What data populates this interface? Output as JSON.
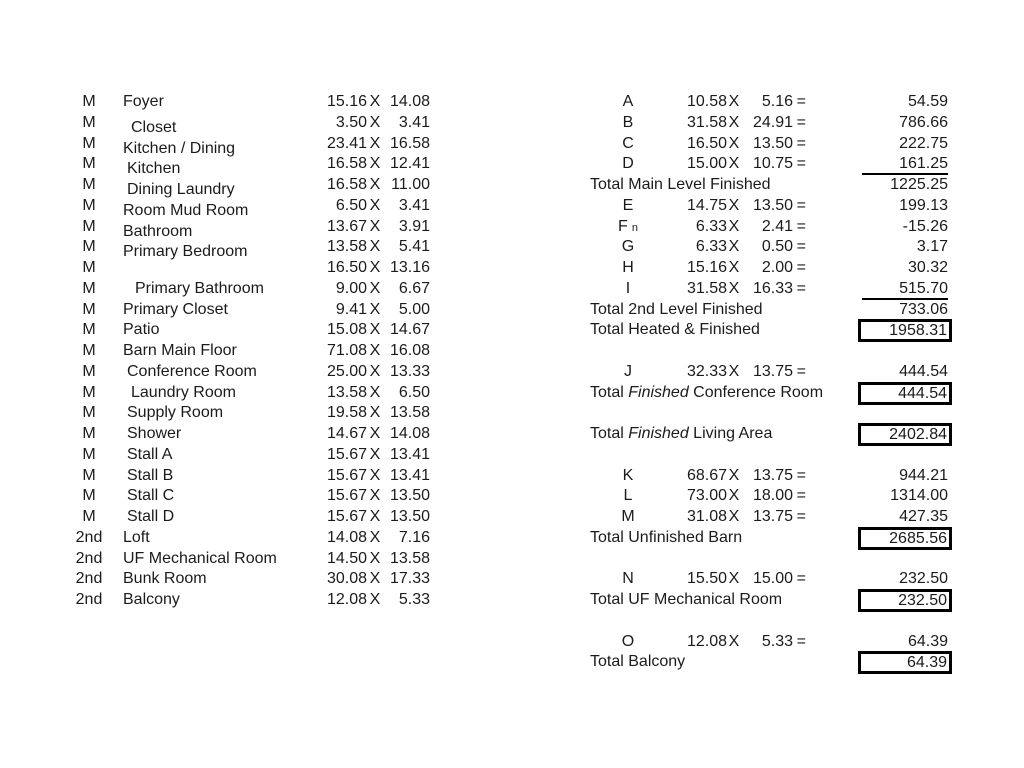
{
  "page": {
    "background": "#ffffff",
    "text_color": "#1b1b1b",
    "line_color": "#000000"
  },
  "symbols": {
    "multiply": "X",
    "equals": "="
  },
  "left_table": {
    "rows": [
      {
        "level": "M",
        "name": "Foyer",
        "w": "15.16",
        "h": "14.08"
      },
      {
        "level": "M",
        "name": "Closet",
        "w": "3.50",
        "h": "3.41",
        "indent": 2,
        "name_shift": true
      },
      {
        "level": "M",
        "name": "Kitchen / Dining",
        "w": "23.41",
        "h": "16.58",
        "name_shift": true
      },
      {
        "level": "M",
        "name": "Kitchen",
        "w": "16.58",
        "h": "12.41",
        "indent": 1,
        "name_shift": true
      },
      {
        "level": "M",
        "name": "Dining Laundry",
        "w": "16.58",
        "h": "11.00",
        "indent": 1,
        "name_shift": true
      },
      {
        "level": "M",
        "name": "Room Mud Room",
        "w": "6.50",
        "h": "3.41",
        "name_shift": true
      },
      {
        "level": "M",
        "name": "Bathroom",
        "w": "13.67",
        "h": "3.91",
        "name_shift": true
      },
      {
        "level": "M",
        "name": "Primary Bedroom",
        "w": "13.58",
        "h": "5.41",
        "name_shift": true
      },
      {
        "level": "M",
        "name": "",
        "w": "16.50",
        "h": "13.16"
      },
      {
        "level": "M",
        "name": "Primary Bathroom",
        "w": "9.00",
        "h": "6.67",
        "indent": 3
      },
      {
        "level": "M",
        "name": "Primary Closet",
        "w": "9.41",
        "h": "5.00"
      },
      {
        "level": "M",
        "name": "Patio",
        "w": "15.08",
        "h": "14.67"
      },
      {
        "level": "M",
        "name": "Barn Main Floor",
        "w": "71.08",
        "h": "16.08"
      },
      {
        "level": "M",
        "name": "Conference Room",
        "w": "25.00",
        "h": "13.33",
        "indent": 1
      },
      {
        "level": "M",
        "name": "Laundry Room",
        "w": "13.58",
        "h": "6.50",
        "indent": 2
      },
      {
        "level": "M",
        "name": "Supply Room",
        "w": "19.58",
        "h": "13.58",
        "indent": 1
      },
      {
        "level": "M",
        "name": "Shower",
        "w": "14.67",
        "h": "14.08",
        "indent": 1
      },
      {
        "level": "M",
        "name": "Stall A",
        "w": "15.67",
        "h": "13.41",
        "indent": 1
      },
      {
        "level": "M",
        "name": "Stall B",
        "w": "15.67",
        "h": "13.41",
        "indent": 1
      },
      {
        "level": "M",
        "name": "Stall C",
        "w": "15.67",
        "h": "13.50",
        "indent": 1
      },
      {
        "level": "M",
        "name": "Stall D",
        "w": "15.67",
        "h": "13.50",
        "indent": 1
      },
      {
        "level": "2nd",
        "name": "Loft",
        "w": "14.08",
        "h": "7.16"
      },
      {
        "level": "2nd",
        "name": "UF Mechanical Room",
        "w": "14.50",
        "h": "13.58"
      },
      {
        "level": "2nd",
        "name": "Bunk Room",
        "w": "30.08",
        "h": "17.33"
      },
      {
        "level": "2nd",
        "name": "Balcony",
        "w": "12.08",
        "h": "5.33"
      }
    ]
  },
  "right_table": {
    "rows": [
      {
        "type": "calc",
        "label": "A",
        "w": "10.58",
        "h": "5.16",
        "value": "54.59"
      },
      {
        "type": "calc",
        "label": "B",
        "w": "31.58",
        "h": "24.91",
        "value": "786.66"
      },
      {
        "type": "calc",
        "label": "C",
        "w": "16.50",
        "h": "13.50",
        "value": "222.75"
      },
      {
        "type": "calc",
        "label": "D",
        "w": "15.00",
        "h": "10.75",
        "value": "161.25",
        "rule_below": true
      },
      {
        "type": "total",
        "pre": "Total Main Level Finished",
        "value": "1225.25"
      },
      {
        "type": "calc",
        "label": "E",
        "w": "14.75",
        "h": "13.50",
        "value": "199.13"
      },
      {
        "type": "calc",
        "label": "F",
        "suffix": "n",
        "w": "6.33",
        "h": "2.41",
        "value": "-15.26"
      },
      {
        "type": "calc",
        "label": "G",
        "w": "6.33",
        "h": "0.50",
        "value": "3.17"
      },
      {
        "type": "calc",
        "label": "H",
        "w": "15.16",
        "h": "2.00",
        "value": "30.32"
      },
      {
        "type": "calc",
        "label": "I",
        "w": "31.58",
        "h": "16.33",
        "value": "515.70",
        "rule_below": true
      },
      {
        "type": "total",
        "pre": "Total 2nd Level Finished",
        "value": "733.06"
      },
      {
        "type": "total",
        "pre": "Total Heated & Finished",
        "value": "1958.31",
        "boxed": true
      },
      {
        "type": "spacer"
      },
      {
        "type": "calc",
        "label": "J",
        "w": "32.33",
        "h": "13.75",
        "value": "444.54"
      },
      {
        "type": "total",
        "pre": "Total ",
        "italic": "Finished",
        "post": " Conference Room",
        "value": "444.54",
        "boxed": true
      },
      {
        "type": "spacer"
      },
      {
        "type": "total",
        "pre": "Total ",
        "italic": "Finished",
        "post": " Living Area",
        "value": "2402.84",
        "boxed": true
      },
      {
        "type": "spacer"
      },
      {
        "type": "calc",
        "label": "K",
        "w": "68.67",
        "h": "13.75",
        "value": "944.21"
      },
      {
        "type": "calc",
        "label": "L",
        "w": "73.00",
        "h": "18.00",
        "value": "1314.00"
      },
      {
        "type": "calc",
        "label": "M",
        "w": "31.08",
        "h": "13.75",
        "value": "427.35"
      },
      {
        "type": "total",
        "pre": "Total Unfinished Barn",
        "value": "2685.56",
        "boxed": true
      },
      {
        "type": "spacer"
      },
      {
        "type": "calc",
        "label": "N",
        "w": "15.50",
        "h": "15.00",
        "value": "232.50"
      },
      {
        "type": "total",
        "pre": "Total UF Mechanical Room",
        "value": "232.50",
        "boxed": true
      },
      {
        "type": "spacer"
      },
      {
        "type": "calc",
        "label": "O",
        "w": "12.08",
        "h": "5.33",
        "value": "64.39"
      },
      {
        "type": "total",
        "pre": "Total Balcony",
        "value": "64.39",
        "boxed": true
      }
    ]
  }
}
